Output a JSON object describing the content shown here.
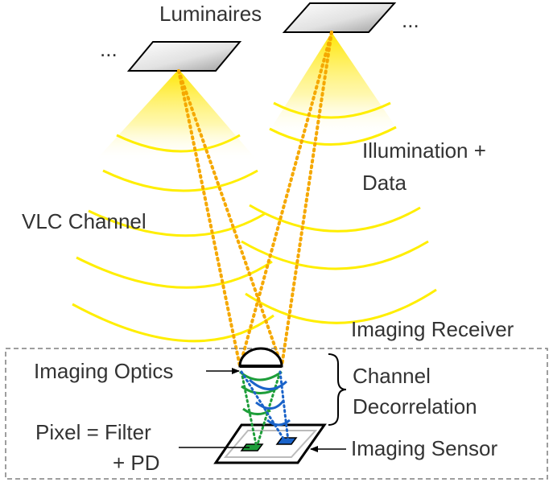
{
  "labels": {
    "luminaires": "Luminaires",
    "ellipsis_left": "...",
    "ellipsis_right": "...",
    "illumination_line1": "Illumination +",
    "illumination_line2": "Data",
    "vlc_channel": "VLC Channel",
    "imaging_receiver": "Imaging Receiver",
    "imaging_optics": "Imaging Optics",
    "channel_line1": "Channel",
    "channel_line2": "Decorrelation",
    "pixel_line1": "Pixel = Filter",
    "pixel_line2": "+ PD",
    "imaging_sensor": "Imaging Sensor"
  },
  "colors": {
    "light": "#ffee00",
    "light_ray": "#f5a800",
    "green_path": "#1e9e3a",
    "blue_path": "#1a63c9",
    "text": "#333333",
    "frame": "#7f7f7f"
  }
}
